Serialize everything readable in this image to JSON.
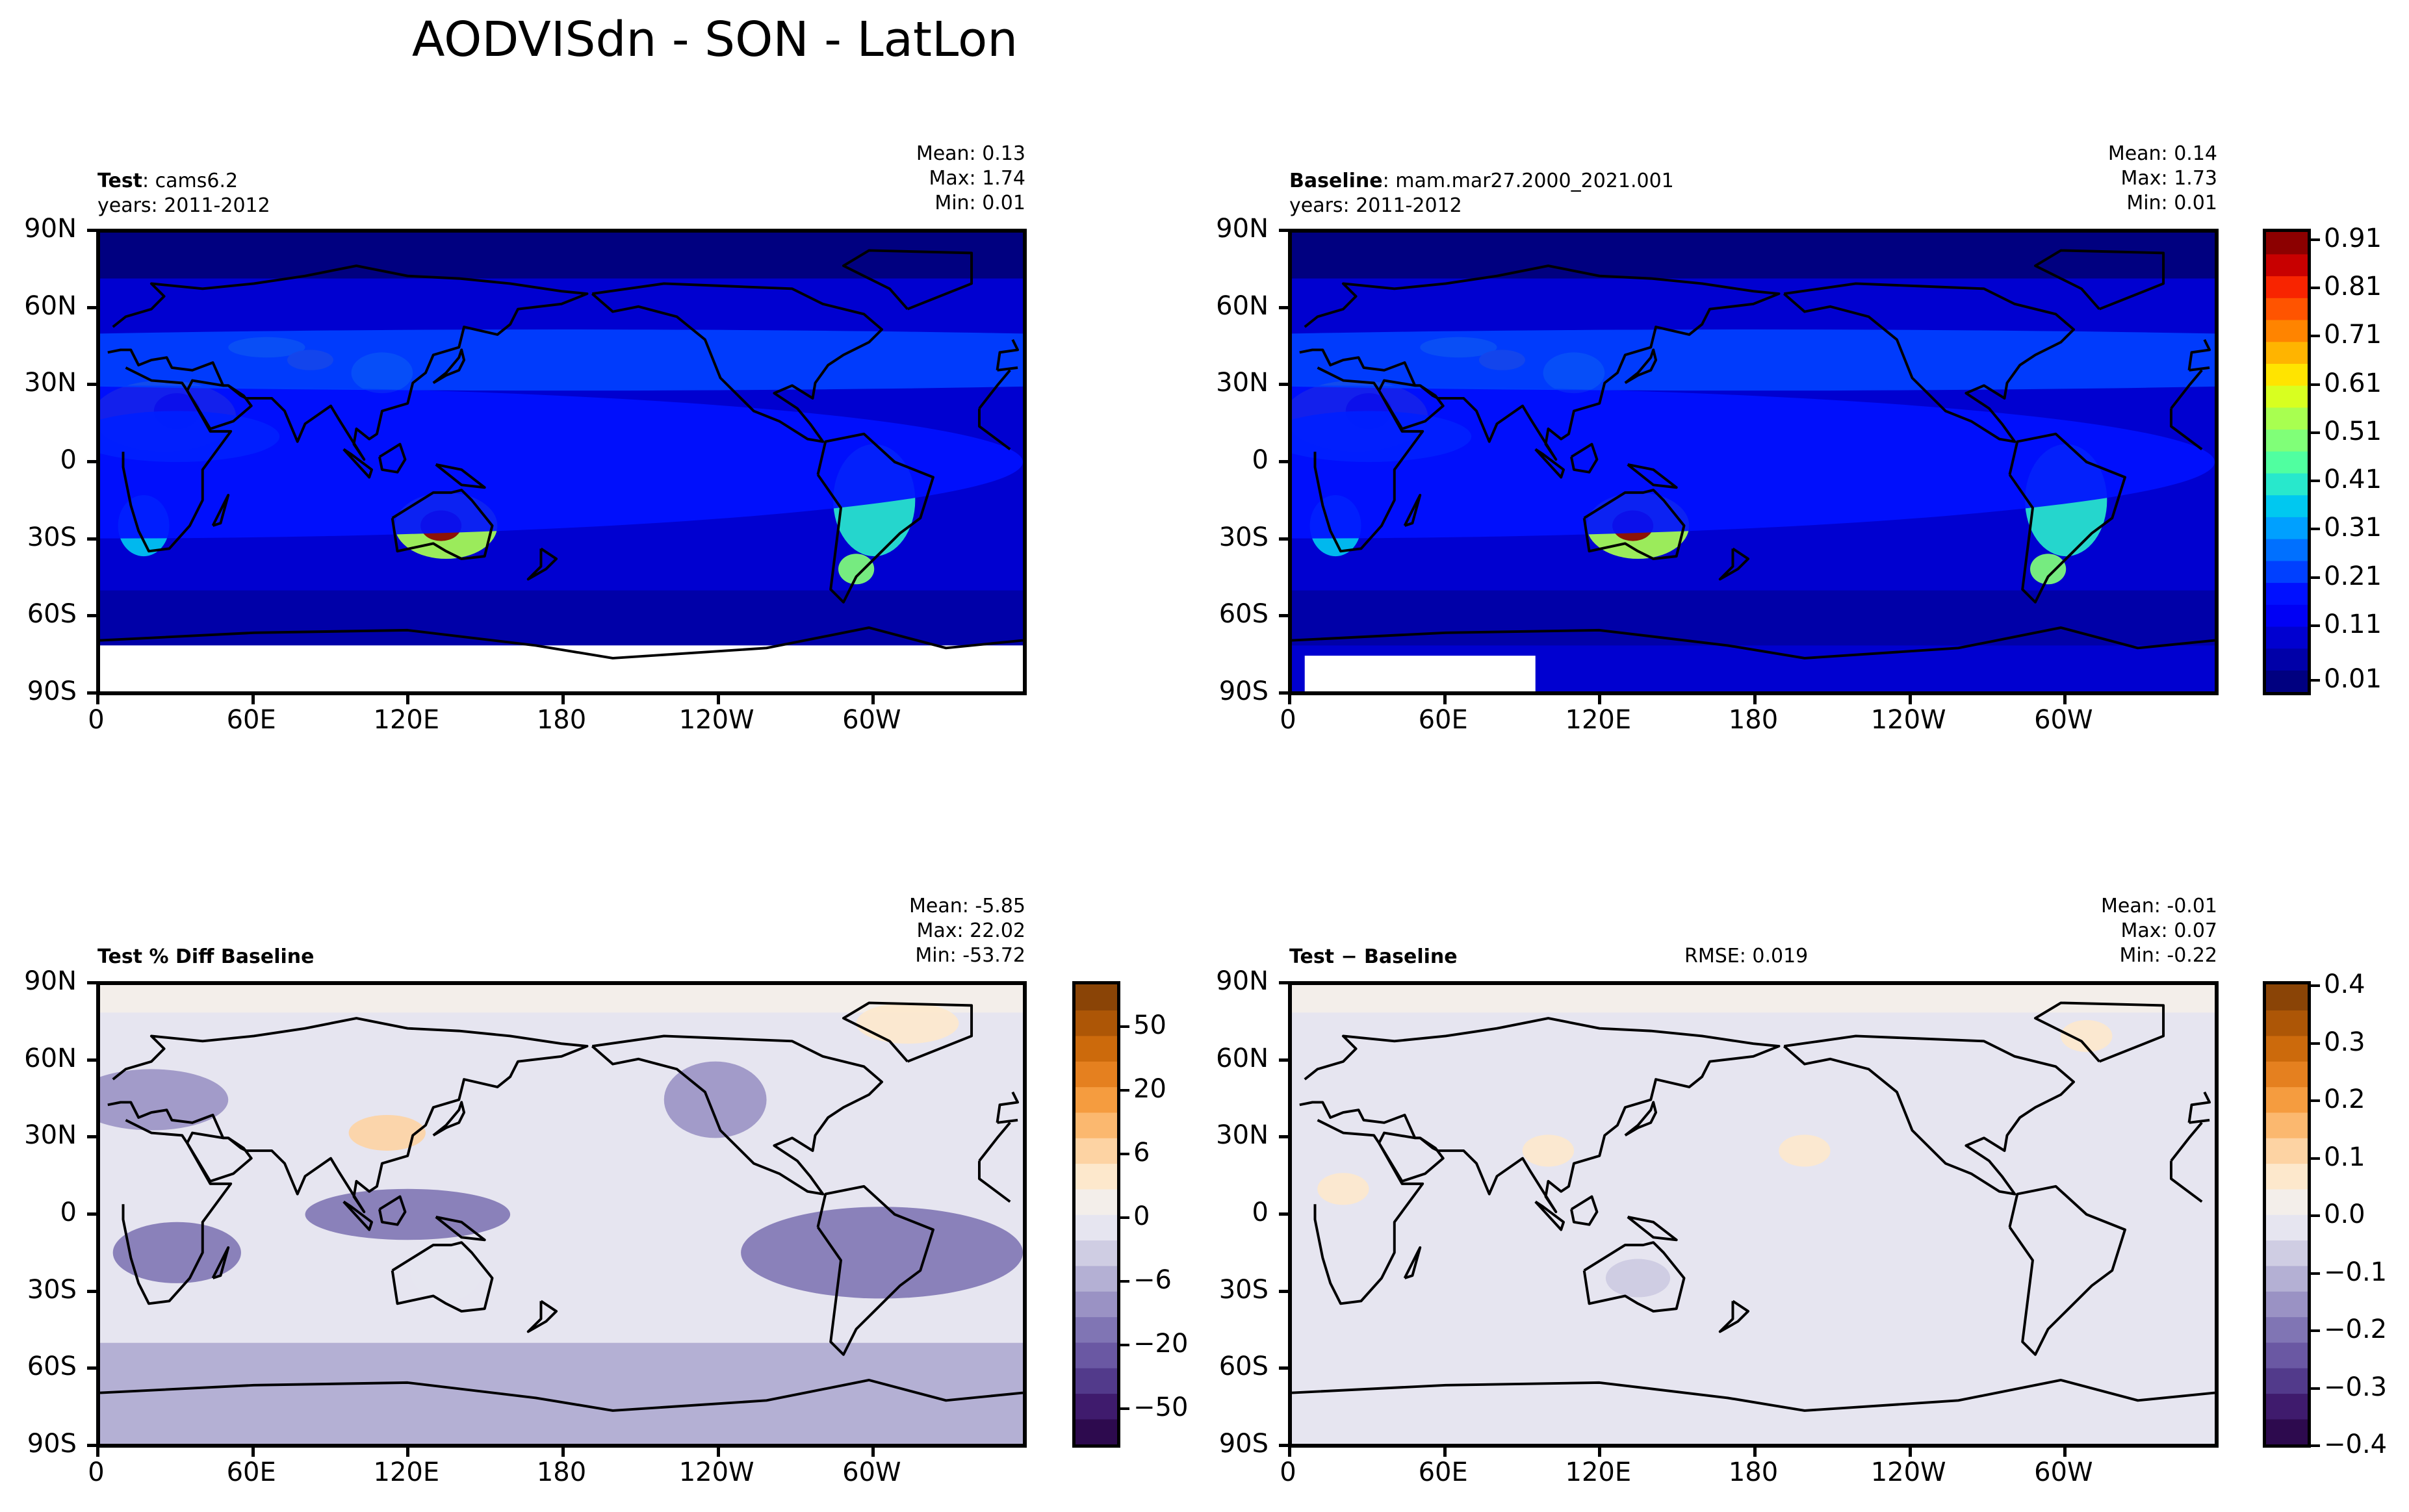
{
  "figure": {
    "suptitle": "AODVISdn - SON - LatLon"
  },
  "lat_ticks": [
    "90N",
    "60N",
    "30N",
    "0",
    "30S",
    "60S",
    "90S"
  ],
  "lon_ticks": [
    "0",
    "60E",
    "120E",
    "180",
    "120W",
    "60W"
  ],
  "panels": [
    {
      "key": "test",
      "title_bold": "Test",
      "title_rest": ": cams6.2",
      "years": "years: 2011-2012",
      "mean": "Mean:  0.13",
      "max": "Max:  1.74",
      "min": "Min:  0.01",
      "colormap": "jet"
    },
    {
      "key": "baseline",
      "title_bold": "Baseline",
      "title_rest": ": mam.mar27.2000_2021.001",
      "years": "years: 2011-2012",
      "mean": "Mean:  0.14",
      "max": "Max:  1.73",
      "min": "Min:  0.01",
      "colormap": "jet"
    },
    {
      "key": "pctdiff",
      "title_bold": "Test % Diff Baseline",
      "title_rest": "",
      "years": "",
      "mean": "Mean: -5.85",
      "max": "Max: 22.02",
      "min": "Min: -53.72",
      "colormap": "PuOr_r"
    },
    {
      "key": "diff",
      "title_bold": "Test − Baseline",
      "title_rest": "",
      "years": "",
      "rmse": "RMSE: 0.019",
      "mean": "Mean: -0.01",
      "max": "Max:  0.07",
      "min": "Min: -0.22",
      "colormap": "PuOr_r"
    }
  ],
  "colorbars": {
    "top": {
      "labels": [
        "0.91",
        "0.81",
        "0.71",
        "0.61",
        "0.51",
        "0.41",
        "0.31",
        "0.21",
        "0.11",
        "0.01"
      ],
      "colors": [
        "#000080",
        "#0000a8",
        "#0000d0",
        "#0000f5",
        "#0010ff",
        "#0040ff",
        "#0070ff",
        "#00a0ff",
        "#00c8f0",
        "#28e8cc",
        "#50ffa0",
        "#80ff78",
        "#a8ff50",
        "#d8ff20",
        "#ffe400",
        "#ffb400",
        "#ff8400",
        "#ff5400",
        "#f82400",
        "#c80000",
        "#8c0000"
      ]
    },
    "pctdiff": {
      "labels": [
        "50",
        "20",
        "6",
        "0",
        "−6",
        "−20",
        "−50"
      ],
      "colors": [
        "#2d0a4e",
        "#3f1b6d",
        "#523a8b",
        "#6a58a3",
        "#8075b4",
        "#9a92c4",
        "#b4b0d4",
        "#cfcde3",
        "#e6e5f0",
        "#f3eeea",
        "#fde8cc",
        "#fdd3a3",
        "#fbb86f",
        "#f59c3f",
        "#e5801f",
        "#cc6a0c",
        "#ad5606",
        "#8a4406"
      ]
    },
    "diff": {
      "labels": [
        "0.4",
        "0.3",
        "0.2",
        "0.1",
        "0.0",
        "−0.1",
        "−0.2",
        "−0.3",
        "−0.4"
      ],
      "colors": [
        "#2d0a4e",
        "#3f1b6d",
        "#523a8b",
        "#6a58a3",
        "#8075b4",
        "#9a92c4",
        "#b4b0d4",
        "#cfcde3",
        "#e6e5f0",
        "#f3eeea",
        "#fde8cc",
        "#fdd3a3",
        "#fbb86f",
        "#f59c3f",
        "#e5801f",
        "#cc6a0c",
        "#ad5606",
        "#8a4406"
      ]
    }
  },
  "chart_data": [
    {
      "type": "heatmap",
      "title": "Test : cams6.2",
      "subtitle": "years: 2011-2012",
      "x_ticks": [
        "0",
        "60E",
        "120E",
        "180",
        "120W",
        "60W"
      ],
      "y_ticks": [
        "90N",
        "60N",
        "30N",
        "0",
        "30S",
        "60S",
        "90S"
      ],
      "stats": {
        "mean": 0.13,
        "max": 1.74,
        "min": 0.01
      },
      "clim": [
        0.01,
        0.96
      ],
      "colorbar": "top"
    },
    {
      "type": "heatmap",
      "title": "Baseline : mam.mar27.2000_2021.001",
      "subtitle": "years: 2011-2012",
      "x_ticks": [
        "0",
        "60E",
        "120E",
        "180",
        "120W",
        "60W"
      ],
      "y_ticks": [
        "90N",
        "60N",
        "30N",
        "0",
        "30S",
        "60S",
        "90S"
      ],
      "stats": {
        "mean": 0.14,
        "max": 1.73,
        "min": 0.01
      },
      "clim": [
        0.01,
        0.96
      ],
      "colorbar": "top"
    },
    {
      "type": "heatmap",
      "title": "Test % Diff Baseline",
      "x_ticks": [
        "0",
        "60E",
        "120E",
        "180",
        "120W",
        "60W"
      ],
      "y_ticks": [
        "90N",
        "60N",
        "30N",
        "0",
        "30S",
        "60S",
        "90S"
      ],
      "stats": {
        "mean": -5.85,
        "max": 22.02,
        "min": -53.72
      },
      "colorbar": "pctdiff"
    },
    {
      "type": "heatmap",
      "title": "Test − Baseline",
      "x_ticks": [
        "0",
        "60E",
        "120E",
        "180",
        "120W",
        "60W"
      ],
      "y_ticks": [
        "90N",
        "60N",
        "30N",
        "0",
        "30S",
        "60S",
        "90S"
      ],
      "stats": {
        "mean": -0.01,
        "max": 0.07,
        "min": -0.22,
        "rmse": 0.019
      },
      "clim": [
        -0.4,
        0.4
      ],
      "colorbar": "diff"
    }
  ]
}
